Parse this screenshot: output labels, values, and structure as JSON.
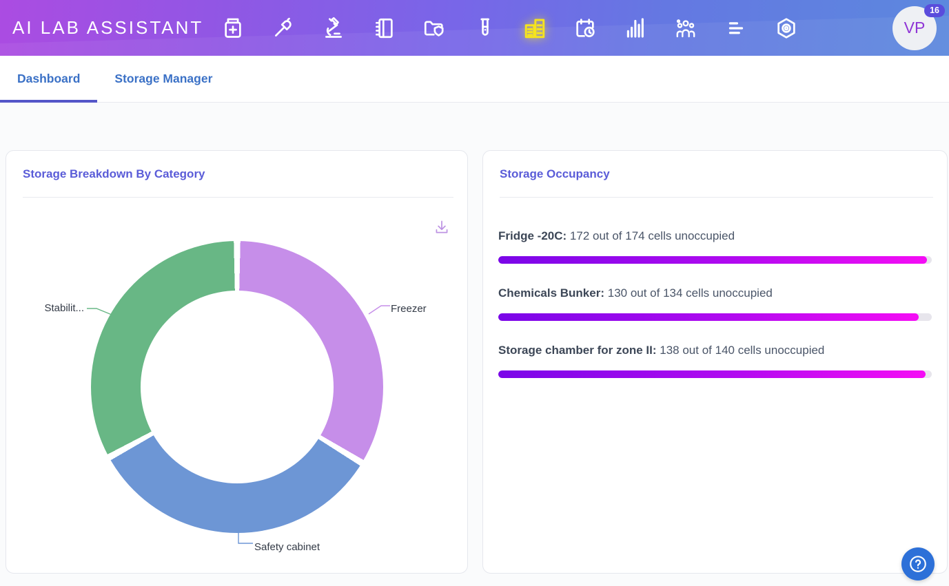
{
  "nav": {
    "logo": "AI LAB ASSISTANT",
    "icons": [
      {
        "name": "medicine-jar-icon",
        "active": false
      },
      {
        "name": "pipette-icon",
        "active": false
      },
      {
        "name": "microscope-icon",
        "active": false
      },
      {
        "name": "notebook-icon",
        "active": false
      },
      {
        "name": "folder-shield-icon",
        "active": false
      },
      {
        "name": "test-tube-icon",
        "active": false
      },
      {
        "name": "storage-cabinets-icon",
        "active": true
      },
      {
        "name": "calendar-clock-icon",
        "active": false
      },
      {
        "name": "bar-chart-icon",
        "active": false
      },
      {
        "name": "team-icon",
        "active": false
      },
      {
        "name": "sort-lines-icon",
        "active": false
      },
      {
        "name": "hexagon-settings-icon",
        "active": false
      }
    ],
    "active_icon_color": "#f6e41d",
    "avatar": {
      "initials": "VP",
      "badge_count": "16",
      "badge_color": "#5a4cdc"
    }
  },
  "tabs": [
    {
      "label": "Dashboard",
      "active": true
    },
    {
      "label": "Storage Manager",
      "active": false
    }
  ],
  "tab_accent_color": "#5456c8",
  "cards": {
    "breakdown": {
      "title": "Storage Breakdown By Category"
    },
    "occupancy": {
      "title": "Storage Occupancy"
    }
  },
  "chart_data": [
    {
      "type": "pie",
      "title": "Storage Breakdown By Category",
      "donut": true,
      "labels": [
        "Freezer",
        "Safety cabinet",
        "Stabilit..."
      ],
      "values": [
        33.7,
        33.3,
        33.0
      ],
      "colors": [
        "#c68ee9",
        "#6d96d5",
        "#68b785"
      ],
      "legend_position": "callout-labels",
      "start_angle_deg": 0
    },
    {
      "type": "progress",
      "title": "Storage Occupancy",
      "items": [
        {
          "label": "Fridge -20C:",
          "text": "172 out of 174 cells unoccupied",
          "unoccupied": 172,
          "total": 174
        },
        {
          "label": "Chemicals Bunker:",
          "text": "130 out of 134 cells unoccupied",
          "unoccupied": 130,
          "total": 134
        },
        {
          "label": "Storage chamber for zone II:",
          "text": "138 out of 140 cells unoccupied",
          "unoccupied": 138,
          "total": 140
        }
      ],
      "bar_gradient": [
        "#7a06e8",
        "#f50df5"
      ],
      "track_color": "#e7e5ec"
    }
  ]
}
